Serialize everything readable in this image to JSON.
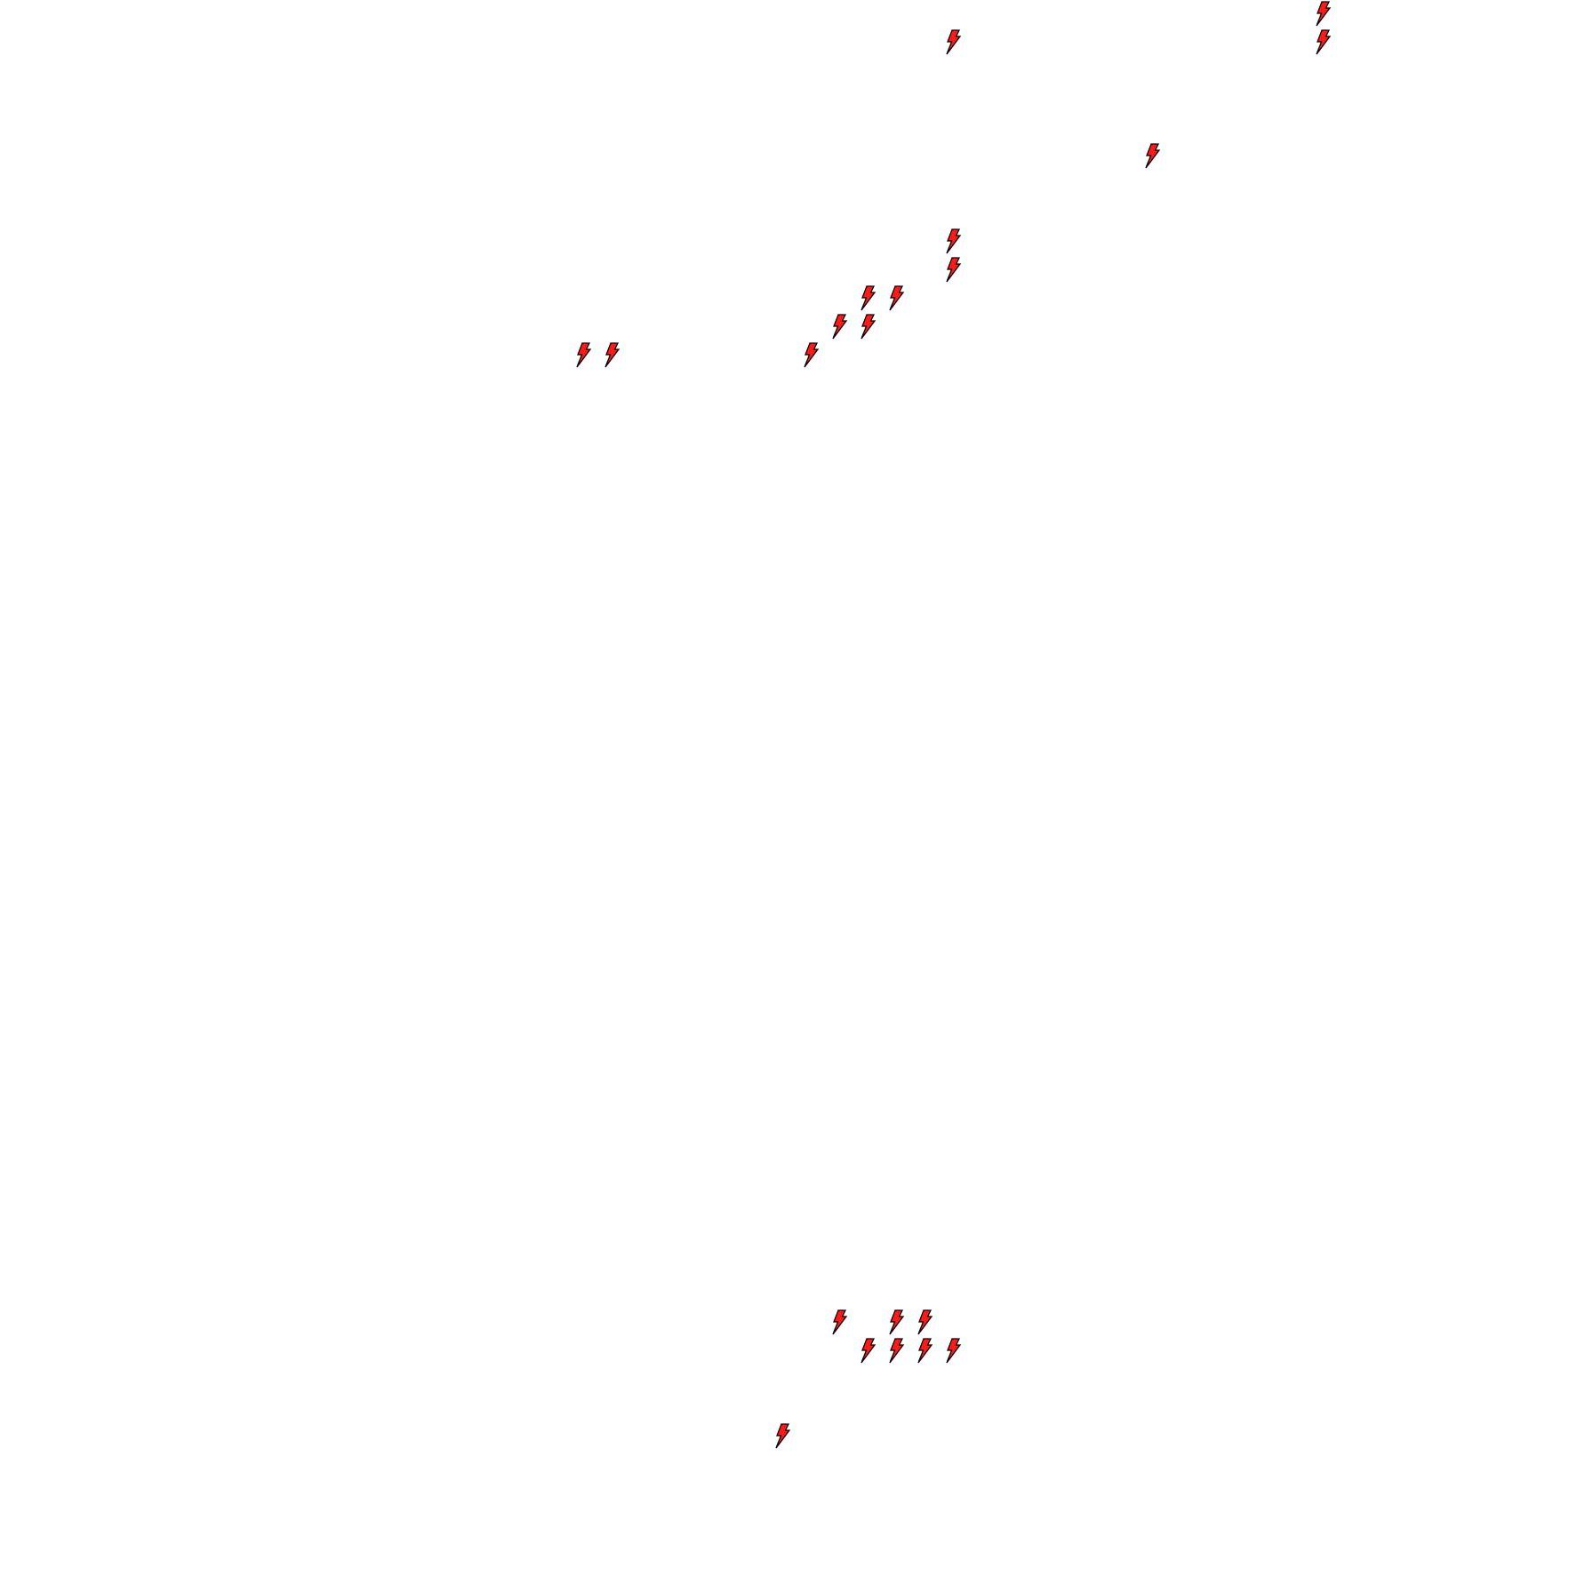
{
  "map": {
    "background_color": "#ffffff",
    "marker_icon": "lightning-bolt-icon",
    "marker_fill_color": "#ff1a1a",
    "marker_stroke_color": "#000000"
  }
}
